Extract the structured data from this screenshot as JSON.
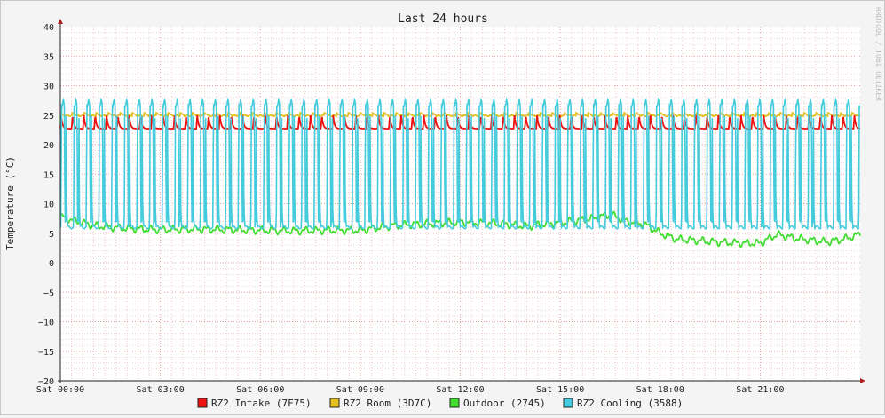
{
  "chart_data": {
    "type": "line",
    "title": "Last 24 hours",
    "ylabel": "Temperature (°C)",
    "xlabel": "",
    "watermark": "RRDTOOL / TOBI OETIKER",
    "ylim": [
      -20,
      40
    ],
    "y_ticks": [
      40,
      35,
      30,
      25,
      20,
      15,
      10,
      5,
      0,
      -5,
      -10,
      -15,
      -20
    ],
    "x_range_hours": [
      0,
      24
    ],
    "x_ticks": [
      {
        "hour": 0,
        "label": "Sat 00:00"
      },
      {
        "hour": 3,
        "label": "Sat 03:00"
      },
      {
        "hour": 6,
        "label": "Sat 06:00"
      },
      {
        "hour": 9,
        "label": "Sat 09:00"
      },
      {
        "hour": 12,
        "label": "Sat 12:00"
      },
      {
        "hour": 15,
        "label": "Sat 15:00"
      },
      {
        "hour": 18,
        "label": "Sat 18:00"
      },
      {
        "hour": 21,
        "label": "Sat 21:00"
      }
    ],
    "grid": true,
    "legend_position": "bottom",
    "series": [
      {
        "name": "RZ2 Intake (7F75)",
        "color": "#ee1111",
        "kind": "intake",
        "baseline": 22.7,
        "peak": 25.0,
        "cycle_hours": 0.34
      },
      {
        "name": "RZ2 Room (3D7C)",
        "color": "#e6c020",
        "kind": "room",
        "baseline": 25.0,
        "amplitude": 0.4
      },
      {
        "name": "Outdoor (2745)",
        "color": "#44dd33",
        "kind": "outdoor",
        "x": [
          0,
          0.5,
          1,
          2,
          3,
          4,
          5,
          6,
          7,
          8,
          9,
          10,
          11,
          12,
          13,
          14,
          15,
          16,
          16.5,
          17,
          17.5,
          18,
          18.5,
          19,
          20,
          21,
          21.5,
          22,
          23,
          23.5,
          24
        ],
        "values": [
          7.8,
          7.0,
          6.3,
          5.8,
          5.6,
          5.7,
          5.6,
          5.5,
          5.4,
          5.5,
          5.5,
          6.3,
          6.6,
          6.9,
          6.7,
          6.2,
          6.8,
          7.5,
          8.2,
          7.0,
          6.6,
          5.0,
          4.0,
          3.8,
          3.4,
          3.3,
          4.8,
          4.2,
          3.5,
          4.0,
          4.8
        ]
      },
      {
        "name": "RZ2 Cooling (3588)",
        "color": "#44ccdd",
        "kind": "cooling",
        "low": 6.0,
        "high": 27.0,
        "cycle_hours": 0.38
      }
    ]
  }
}
